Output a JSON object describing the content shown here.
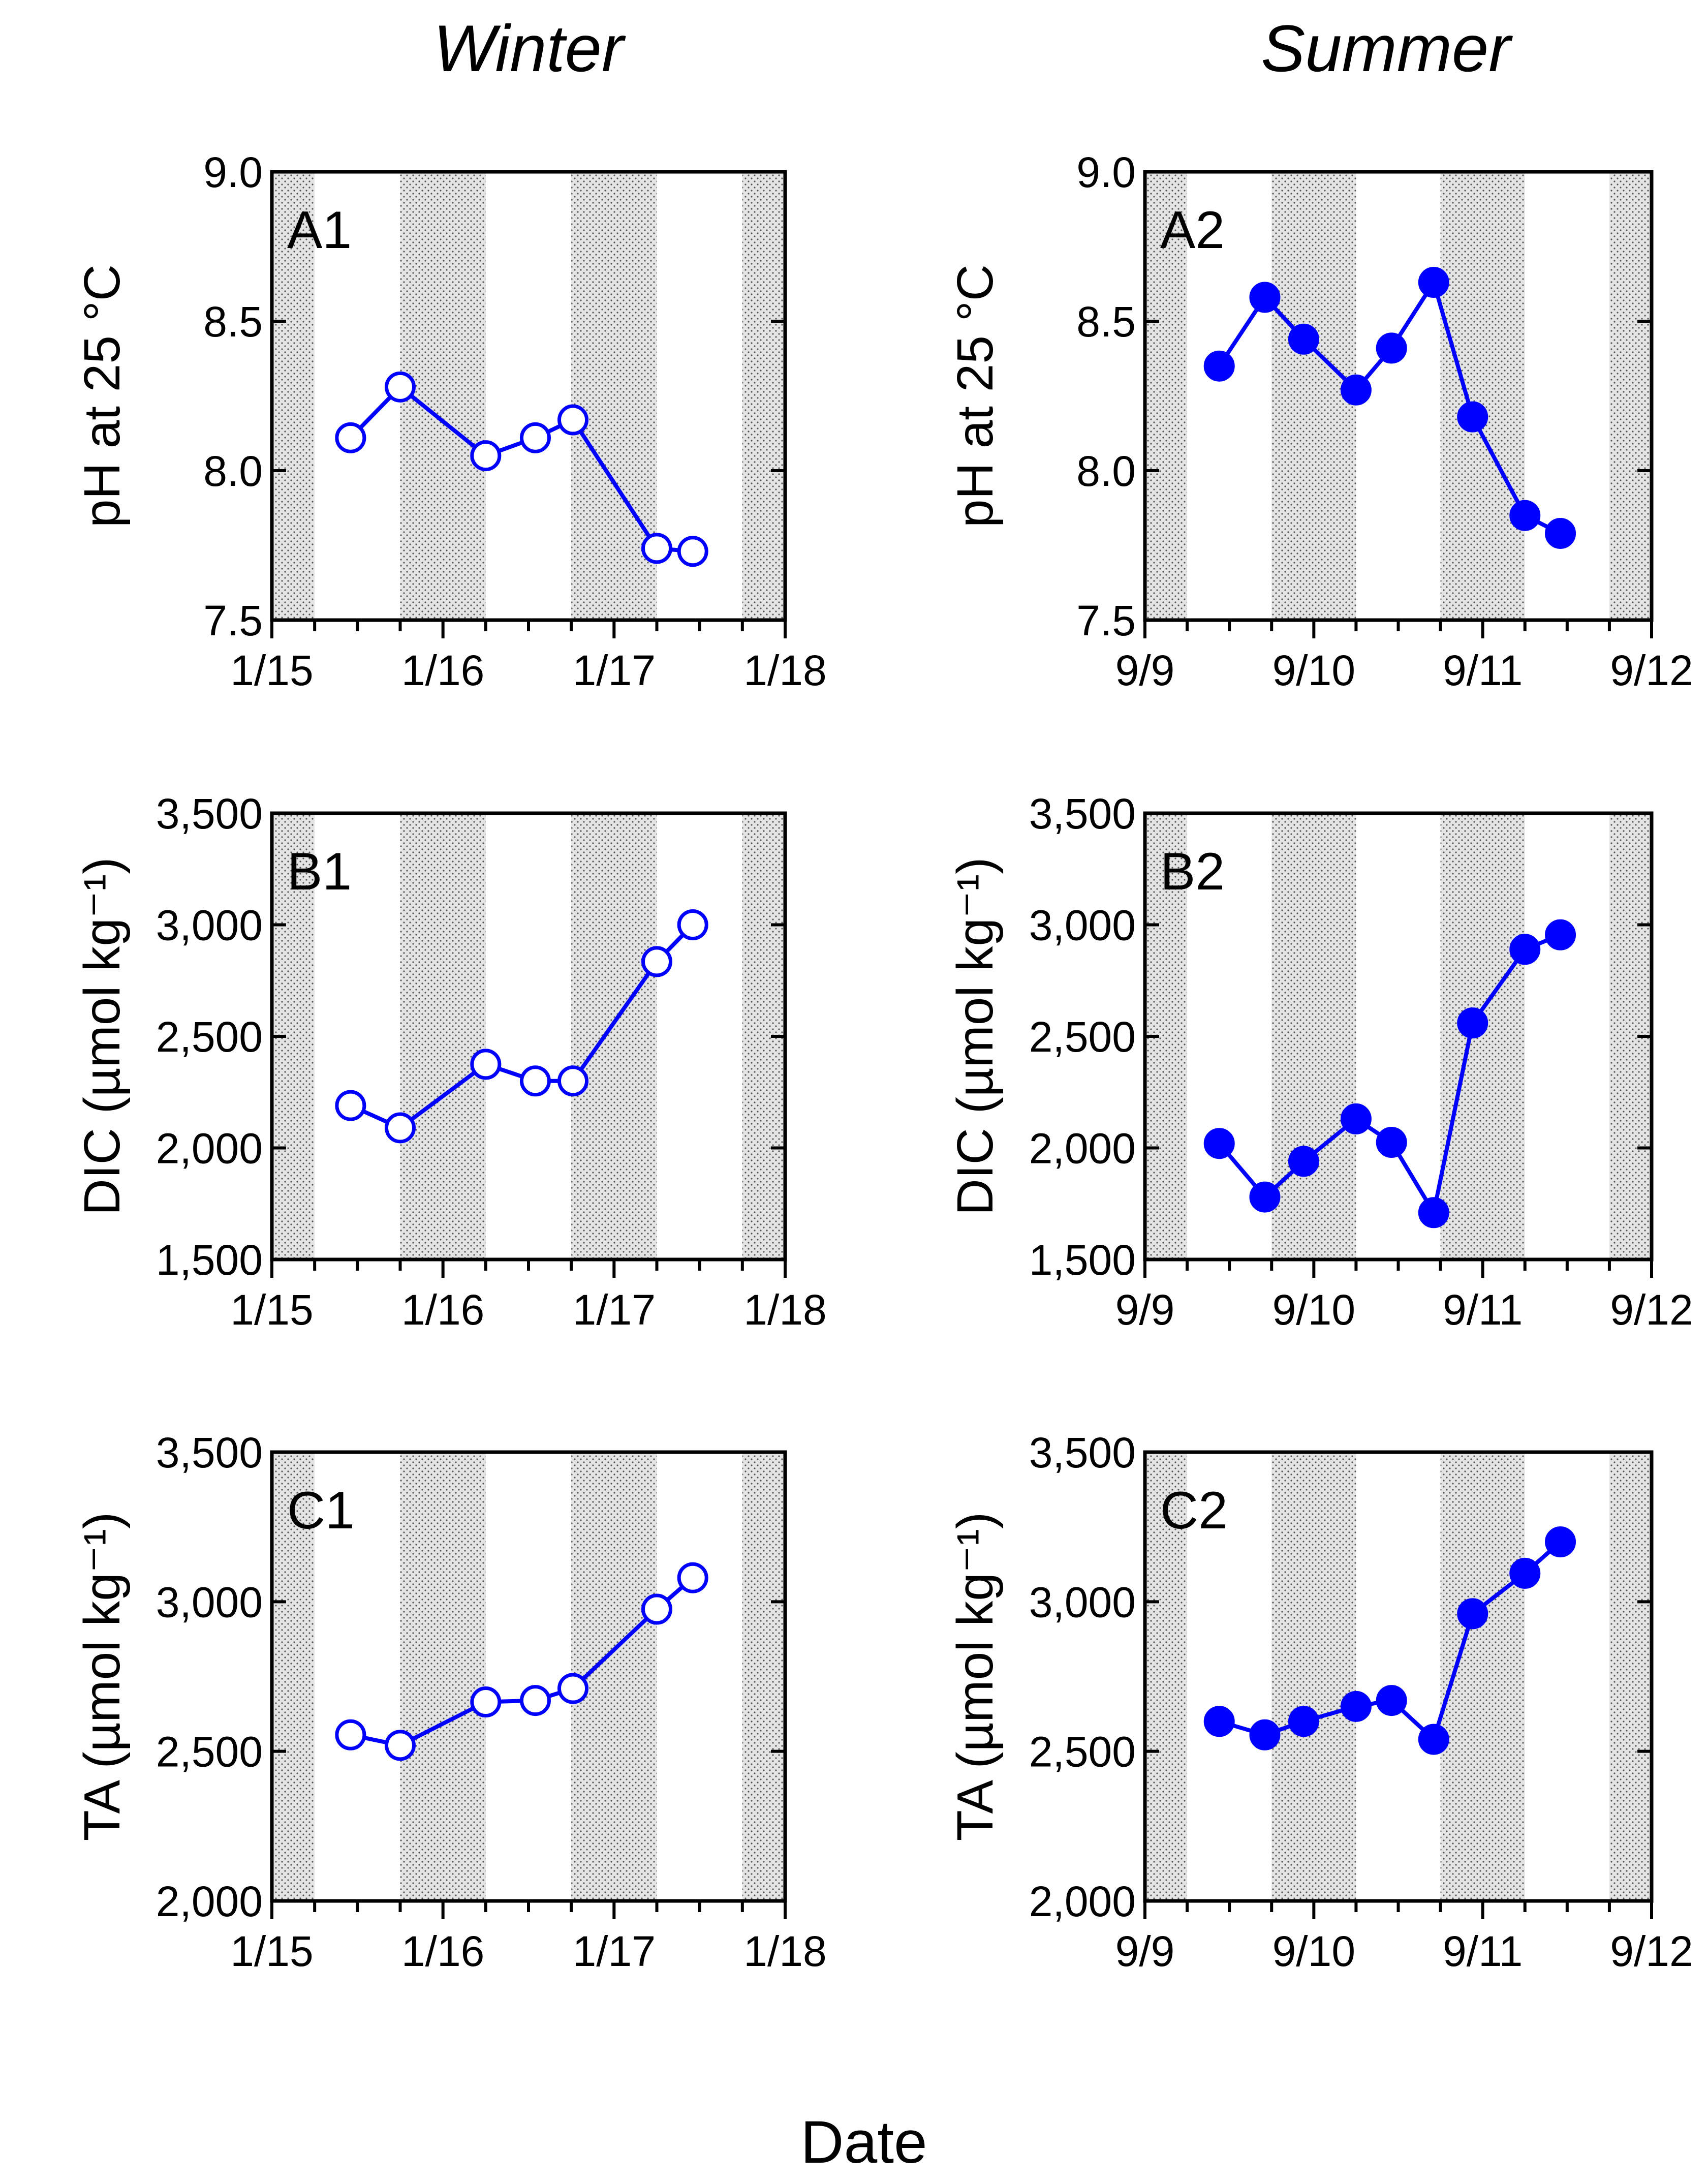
{
  "figure": {
    "columns": [
      "Winter",
      "Summer"
    ],
    "xlabel": "Date",
    "series_color": "#0000ff",
    "night_shading": "stippled grey"
  },
  "chart_data": [
    {
      "panel": "A1",
      "type": "line",
      "column": "Winter",
      "marker": "open-circle",
      "ylabel": "pH at 25 °C",
      "ylim": [
        7.5,
        9.0
      ],
      "yticks": [
        "7.5",
        "8.0",
        "8.5",
        "9.0"
      ],
      "xlim": [
        0,
        3
      ],
      "xticks": [
        "1/15",
        "1/16",
        "1/17",
        "1/18"
      ],
      "night_bands": [
        [
          0,
          0.25
        ],
        [
          0.75,
          1.25
        ],
        [
          1.75,
          2.25
        ],
        [
          2.75,
          3
        ]
      ],
      "x": [
        0.46,
        0.75,
        1.25,
        1.54,
        1.76,
        2.25,
        2.46
      ],
      "values": [
        8.11,
        8.28,
        8.05,
        8.11,
        8.17,
        7.74,
        7.73
      ]
    },
    {
      "panel": "B1",
      "type": "line",
      "column": "Winter",
      "marker": "open-circle",
      "ylabel": "DIC (µmol kg⁻¹)",
      "ylim": [
        1500,
        3500
      ],
      "yticks": [
        "1,500",
        "2,000",
        "2,500",
        "3,000",
        "3,500"
      ],
      "xlim": [
        0,
        3
      ],
      "xticks": [
        "1/15",
        "1/16",
        "1/17",
        "1/18"
      ],
      "night_bands": [
        [
          0,
          0.25
        ],
        [
          0.75,
          1.25
        ],
        [
          1.75,
          2.25
        ],
        [
          2.75,
          3
        ]
      ],
      "x": [
        0.46,
        0.75,
        1.25,
        1.54,
        1.76,
        2.25,
        2.46
      ],
      "values": [
        2190,
        2090,
        2375,
        2300,
        2300,
        2835,
        3000
      ]
    },
    {
      "panel": "C1",
      "type": "line",
      "column": "Winter",
      "marker": "open-circle",
      "ylabel": "TA (µmol kg⁻¹)",
      "ylim": [
        2000,
        3500
      ],
      "yticks": [
        "2,000",
        "2,500",
        "3,000",
        "3,500"
      ],
      "xlim": [
        0,
        3
      ],
      "xticks": [
        "1/15",
        "1/16",
        "1/17",
        "1/18"
      ],
      "night_bands": [
        [
          0,
          0.25
        ],
        [
          0.75,
          1.25
        ],
        [
          1.75,
          2.25
        ],
        [
          2.75,
          3
        ]
      ],
      "x": [
        0.46,
        0.75,
        1.25,
        1.54,
        1.76,
        2.25,
        2.46
      ],
      "values": [
        2555,
        2520,
        2665,
        2670,
        2710,
        2975,
        3080
      ]
    },
    {
      "panel": "A2",
      "type": "line",
      "column": "Summer",
      "marker": "filled-circle",
      "ylabel": "pH at 25 °C",
      "ylim": [
        7.5,
        9.0
      ],
      "yticks": [
        "7.5",
        "8.0",
        "8.5",
        "9.0"
      ],
      "xlim": [
        0,
        3
      ],
      "xticks": [
        "9/9",
        "9/10",
        "9/11",
        "9/12"
      ],
      "night_bands": [
        [
          0,
          0.25
        ],
        [
          0.75,
          1.25
        ],
        [
          1.75,
          2.25
        ],
        [
          2.75,
          3
        ]
      ],
      "x": [
        0.44,
        0.71,
        0.94,
        1.25,
        1.46,
        1.71,
        1.94,
        2.25,
        2.46
      ],
      "values": [
        8.35,
        8.58,
        8.44,
        8.27,
        8.41,
        8.63,
        8.18,
        7.85,
        7.79
      ]
    },
    {
      "panel": "B2",
      "type": "line",
      "column": "Summer",
      "marker": "filled-circle",
      "ylabel": "DIC (µmol kg⁻¹)",
      "ylim": [
        1500,
        3500
      ],
      "yticks": [
        "1,500",
        "2,000",
        "2,500",
        "3,000",
        "3,500"
      ],
      "xlim": [
        0,
        3
      ],
      "xticks": [
        "9/9",
        "9/10",
        "9/11",
        "9/12"
      ],
      "night_bands": [
        [
          0,
          0.25
        ],
        [
          0.75,
          1.25
        ],
        [
          1.75,
          2.25
        ],
        [
          2.75,
          3
        ]
      ],
      "x": [
        0.44,
        0.71,
        0.94,
        1.25,
        1.46,
        1.71,
        1.94,
        2.25,
        2.46
      ],
      "values": [
        2020,
        1780,
        1940,
        2130,
        2025,
        1710,
        2560,
        2890,
        2955
      ]
    },
    {
      "panel": "C2",
      "type": "line",
      "column": "Summer",
      "marker": "filled-circle",
      "ylabel": "TA (µmol kg⁻¹)",
      "ylim": [
        2000,
        3500
      ],
      "yticks": [
        "2,000",
        "2,500",
        "3,000",
        "3,500"
      ],
      "xlim": [
        0,
        3
      ],
      "xticks": [
        "9/9",
        "9/10",
        "9/11",
        "9/12"
      ],
      "night_bands": [
        [
          0,
          0.25
        ],
        [
          0.75,
          1.25
        ],
        [
          1.75,
          2.25
        ],
        [
          2.75,
          3
        ]
      ],
      "x": [
        0.44,
        0.71,
        0.94,
        1.25,
        1.46,
        1.71,
        1.94,
        2.25,
        2.46
      ],
      "values": [
        2600,
        2555,
        2600,
        2650,
        2670,
        2540,
        2960,
        3095,
        3200
      ]
    }
  ]
}
